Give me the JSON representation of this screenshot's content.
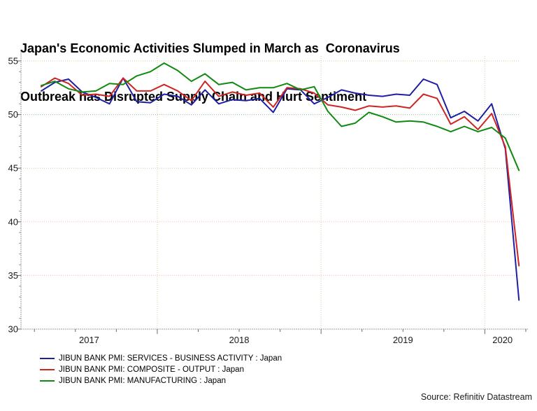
{
  "title": {
    "line1": "Japan's Economic Activities Slumped in March as  Coronavirus",
    "line2": "Outbreak has Disrupted Supply Chain and Hurt Sentiment"
  },
  "source": "Source: Refinitiv Datastream",
  "chart_data": {
    "type": "line",
    "title": "Japan's Economic Activities Slumped in March as Coronavirus Outbreak has Disrupted Supply Chain and Hurt Sentiment",
    "x_frequency": "monthly",
    "months": [
      "2017-04",
      "2017-05",
      "2017-06",
      "2017-07",
      "2017-08",
      "2017-09",
      "2017-10",
      "2017-11",
      "2017-12",
      "2018-01",
      "2018-02",
      "2018-03",
      "2018-04",
      "2018-05",
      "2018-06",
      "2018-07",
      "2018-08",
      "2018-09",
      "2018-10",
      "2018-11",
      "2018-12",
      "2019-01",
      "2019-02",
      "2019-03",
      "2019-04",
      "2019-05",
      "2019-06",
      "2019-07",
      "2019-08",
      "2019-09",
      "2019-10",
      "2019-11",
      "2019-12",
      "2020-01",
      "2020-02",
      "2020-03"
    ],
    "series": [
      {
        "name": "JIBUN BANK PMI: SERVICES - BUSINESS ACTIVITY : Japan",
        "color": "#1F1FA3",
        "values": [
          52.2,
          53.0,
          53.3,
          52.1,
          51.6,
          51.0,
          53.4,
          51.2,
          51.1,
          51.9,
          51.7,
          50.9,
          52.3,
          51.0,
          51.4,
          51.3,
          51.5,
          50.2,
          52.4,
          52.3,
          51.0,
          51.6,
          52.3,
          52.0,
          51.8,
          51.7,
          51.9,
          51.8,
          53.3,
          52.8,
          49.7,
          50.3,
          49.4,
          51.0,
          46.8,
          32.7
        ]
      },
      {
        "name": "JIBUN BANK PMI: COMPOSITE - OUTPUT : Japan",
        "color": "#CE2424",
        "values": [
          52.6,
          53.4,
          52.9,
          51.8,
          51.9,
          51.7,
          53.4,
          52.2,
          52.2,
          52.8,
          52.2,
          51.3,
          53.1,
          51.7,
          52.1,
          51.8,
          52.0,
          50.7,
          52.5,
          52.4,
          52.0,
          50.9,
          50.7,
          50.4,
          50.8,
          50.7,
          50.8,
          50.6,
          51.9,
          51.5,
          49.1,
          49.8,
          48.6,
          50.1,
          47.0,
          35.9
        ]
      },
      {
        "name": "JIBUN BANK PMI: MANUFACTURING : Japan",
        "color": "#108A10",
        "values": [
          52.7,
          53.1,
          52.4,
          52.1,
          52.2,
          52.9,
          52.8,
          53.6,
          54.0,
          54.8,
          54.1,
          53.1,
          53.8,
          52.8,
          53.0,
          52.3,
          52.5,
          52.5,
          52.9,
          52.3,
          52.6,
          50.3,
          48.9,
          49.2,
          50.2,
          49.8,
          49.3,
          49.4,
          49.3,
          48.9,
          48.4,
          48.9,
          48.4,
          48.8,
          47.8,
          44.8
        ]
      }
    ],
    "ylim": [
      30,
      55
    ],
    "yticks": [
      30,
      35,
      40,
      45,
      50,
      55
    ],
    "ytick_minor_step": 1,
    "xtick_years": [
      "2017",
      "2018",
      "2019",
      "2020"
    ],
    "grid": "dotted horizontal lines at major y ticks; dotted vertical lines at year starts",
    "legend_position": "bottom-left"
  }
}
